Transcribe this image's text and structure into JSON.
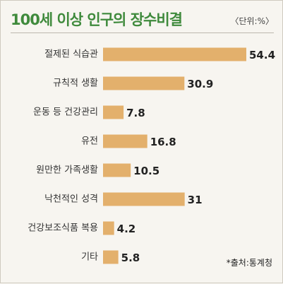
{
  "header": {
    "title": "100세 이상 인구의 장수비결",
    "unit": "〈단위:%〉"
  },
  "footer": {
    "source": "*출처:통계청"
  },
  "colors": {
    "bar": "#e3b06c",
    "title": "#3f8a3c"
  },
  "chart_data": {
    "type": "bar",
    "orientation": "horizontal",
    "title": "100세 이상 인구의 장수비결",
    "unit": "%",
    "categories": [
      "절제된 식습관",
      "규칙적 생활",
      "운동 등 건강관리",
      "유전",
      "원만한 가족생활",
      "낙천적인 성격",
      "건강보조식품 복용",
      "기타"
    ],
    "values": [
      54.4,
      30.9,
      7.8,
      16.8,
      10.5,
      31,
      4.2,
      5.8
    ],
    "value_labels": [
      "54.4",
      "30.9",
      "7.8",
      "16.8",
      "10.5",
      "31",
      "4.2",
      "5.8"
    ],
    "xlim": [
      0,
      54.4
    ],
    "grid": false,
    "legend": "none"
  }
}
